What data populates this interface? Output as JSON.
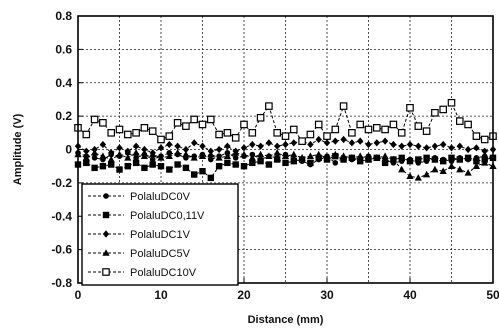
{
  "chart_data": {
    "type": "line",
    "xlabel": "Distance (mm)",
    "ylabel": "Amplitude (V)",
    "xlim": [
      0,
      50
    ],
    "ylim": [
      -0.8,
      0.8
    ],
    "x_ticks": [
      0,
      10,
      20,
      30,
      40,
      50
    ],
    "x_tick_labels": [
      "0",
      "10",
      "20",
      "30",
      "40",
      "50"
    ],
    "y_ticks": [
      0.8,
      0.6,
      0.4,
      0.2,
      0,
      -0.2,
      -0.4,
      -0.6,
      -0.8
    ],
    "y_tick_labels": [
      "0.8",
      "0.6",
      "0.4",
      "0.2",
      "0",
      "-0.2",
      "-0.4",
      "-0.6",
      "-0.8"
    ],
    "grid": true,
    "legend_position": "bottom-left",
    "series": [
      {
        "name": "PolaluDC0V",
        "marker": "circle",
        "color": "#000000",
        "x": [
          0,
          1,
          2,
          3,
          4,
          5,
          6,
          7,
          8,
          9,
          10,
          11,
          12,
          13,
          14,
          15,
          16,
          17,
          18,
          19,
          20,
          21,
          22,
          23,
          24,
          25,
          26,
          27,
          28,
          29,
          30,
          31,
          32,
          33,
          34,
          35,
          36,
          37,
          38,
          39,
          40,
          41,
          42,
          43,
          44,
          45,
          46,
          47,
          48,
          49,
          50
        ],
        "y": [
          -0.02,
          -0.04,
          -0.05,
          -0.06,
          -0.03,
          -0.04,
          -0.02,
          -0.05,
          -0.03,
          -0.06,
          -0.04,
          -0.02,
          -0.03,
          -0.05,
          -0.04,
          -0.03,
          -0.06,
          -0.04,
          -0.02,
          -0.05,
          -0.04,
          -0.03,
          -0.06,
          -0.04,
          -0.05,
          -0.03,
          -0.06,
          -0.07,
          -0.09,
          -0.06,
          -0.04,
          -0.08,
          -0.05,
          -0.06,
          -0.05,
          -0.04,
          -0.05,
          -0.06,
          -0.08,
          -0.07,
          -0.06,
          -0.08,
          -0.07,
          -0.05,
          -0.06,
          -0.07,
          -0.05,
          -0.06,
          -0.05,
          -0.04,
          -0.05
        ]
      },
      {
        "name": "PolaluDC0,11V",
        "marker": "square-filled",
        "color": "#000000",
        "x": [
          0,
          1,
          2,
          3,
          4,
          5,
          6,
          7,
          8,
          9,
          10,
          11,
          12,
          13,
          14,
          15,
          16,
          17,
          18,
          19,
          20,
          21,
          22,
          23,
          24,
          25,
          26,
          27,
          28,
          29,
          30,
          31,
          32,
          33,
          34,
          35,
          36,
          37,
          38,
          39,
          40,
          41,
          42,
          43,
          44,
          45,
          46,
          47,
          48,
          49,
          50
        ],
        "y": [
          -0.09,
          -0.08,
          -0.11,
          -0.1,
          -0.09,
          -0.12,
          -0.1,
          -0.08,
          -0.11,
          -0.09,
          -0.1,
          -0.12,
          -0.09,
          -0.11,
          -0.15,
          -0.13,
          -0.17,
          -0.1,
          -0.08,
          -0.09,
          -0.1,
          -0.08,
          -0.07,
          -0.09,
          -0.06,
          -0.08,
          -0.07,
          -0.06,
          -0.08,
          -0.05,
          -0.06,
          -0.04,
          -0.06,
          -0.05,
          -0.07,
          -0.06,
          -0.05,
          -0.08,
          -0.06,
          -0.05,
          -0.07,
          -0.06,
          -0.05,
          -0.06,
          -0.07,
          -0.05,
          -0.06,
          -0.05,
          -0.07,
          -0.06,
          -0.05
        ]
      },
      {
        "name": "PolaluDC1V",
        "marker": "diamond",
        "color": "#000000",
        "x": [
          0,
          1,
          2,
          3,
          4,
          5,
          6,
          7,
          8,
          9,
          10,
          11,
          12,
          13,
          14,
          15,
          16,
          17,
          18,
          19,
          20,
          21,
          22,
          23,
          24,
          25,
          26,
          27,
          28,
          29,
          30,
          31,
          32,
          33,
          34,
          35,
          36,
          37,
          38,
          39,
          40,
          41,
          42,
          43,
          44,
          45,
          46,
          47,
          48,
          49,
          50
        ],
        "y": [
          0.02,
          -0.01,
          0.0,
          0.03,
          -0.02,
          0.01,
          -0.01,
          0.02,
          0.0,
          -0.02,
          0.01,
          0.03,
          0.02,
          0.0,
          0.04,
          0.02,
          -0.01,
          0.0,
          0.02,
          -0.01,
          0.01,
          0.03,
          0.02,
          0.04,
          0.02,
          0.03,
          0.04,
          0.05,
          0.03,
          0.06,
          0.04,
          0.05,
          0.06,
          0.04,
          0.05,
          0.03,
          0.04,
          0.05,
          0.03,
          0.02,
          0.03,
          0.02,
          0.01,
          0.02,
          0.03,
          0.01,
          0.02,
          0.0,
          0.01,
          -0.01,
          0.0
        ]
      },
      {
        "name": "PolaluDC5V",
        "marker": "triangle",
        "color": "#000000",
        "x": [
          0,
          1,
          2,
          3,
          4,
          5,
          6,
          7,
          8,
          9,
          10,
          11,
          12,
          13,
          14,
          15,
          16,
          17,
          18,
          19,
          20,
          21,
          22,
          23,
          24,
          25,
          26,
          27,
          28,
          29,
          30,
          31,
          32,
          33,
          34,
          35,
          36,
          37,
          38,
          39,
          40,
          41,
          42,
          43,
          44,
          45,
          46,
          47,
          48,
          49,
          50
        ],
        "y": [
          -0.03,
          -0.05,
          -0.02,
          -0.04,
          -0.06,
          -0.03,
          -0.05,
          -0.02,
          -0.04,
          -0.03,
          -0.05,
          -0.04,
          -0.02,
          -0.03,
          -0.05,
          -0.04,
          -0.03,
          -0.05,
          -0.04,
          -0.02,
          -0.03,
          -0.05,
          -0.03,
          -0.04,
          -0.02,
          -0.04,
          -0.03,
          -0.05,
          -0.04,
          -0.03,
          -0.05,
          -0.03,
          -0.04,
          -0.05,
          -0.04,
          -0.06,
          -0.05,
          -0.04,
          -0.06,
          -0.12,
          -0.16,
          -0.17,
          -0.15,
          -0.12,
          -0.13,
          -0.1,
          -0.12,
          -0.14,
          -0.1,
          -0.08,
          -0.1
        ]
      },
      {
        "name": "PolaluDC10V",
        "marker": "square-open",
        "color": "#000000",
        "x": [
          0,
          1,
          2,
          3,
          4,
          5,
          6,
          7,
          8,
          9,
          10,
          11,
          12,
          13,
          14,
          15,
          16,
          17,
          18,
          19,
          20,
          21,
          22,
          23,
          24,
          25,
          26,
          27,
          28,
          29,
          30,
          31,
          32,
          33,
          34,
          35,
          36,
          37,
          38,
          39,
          40,
          41,
          42,
          43,
          44,
          45,
          46,
          47,
          48,
          49,
          50
        ],
        "y": [
          0.13,
          0.09,
          0.18,
          0.16,
          0.1,
          0.12,
          0.09,
          0.1,
          0.13,
          0.11,
          0.06,
          0.08,
          0.16,
          0.14,
          0.18,
          0.15,
          0.18,
          0.09,
          0.1,
          0.07,
          0.15,
          0.1,
          0.19,
          0.26,
          0.1,
          0.08,
          0.12,
          0.05,
          0.09,
          0.15,
          0.08,
          0.12,
          0.26,
          0.1,
          0.15,
          0.12,
          0.13,
          0.12,
          0.15,
          0.1,
          0.25,
          0.14,
          0.11,
          0.22,
          0.24,
          0.28,
          0.17,
          0.15,
          0.08,
          0.06,
          0.08
        ]
      }
    ]
  }
}
